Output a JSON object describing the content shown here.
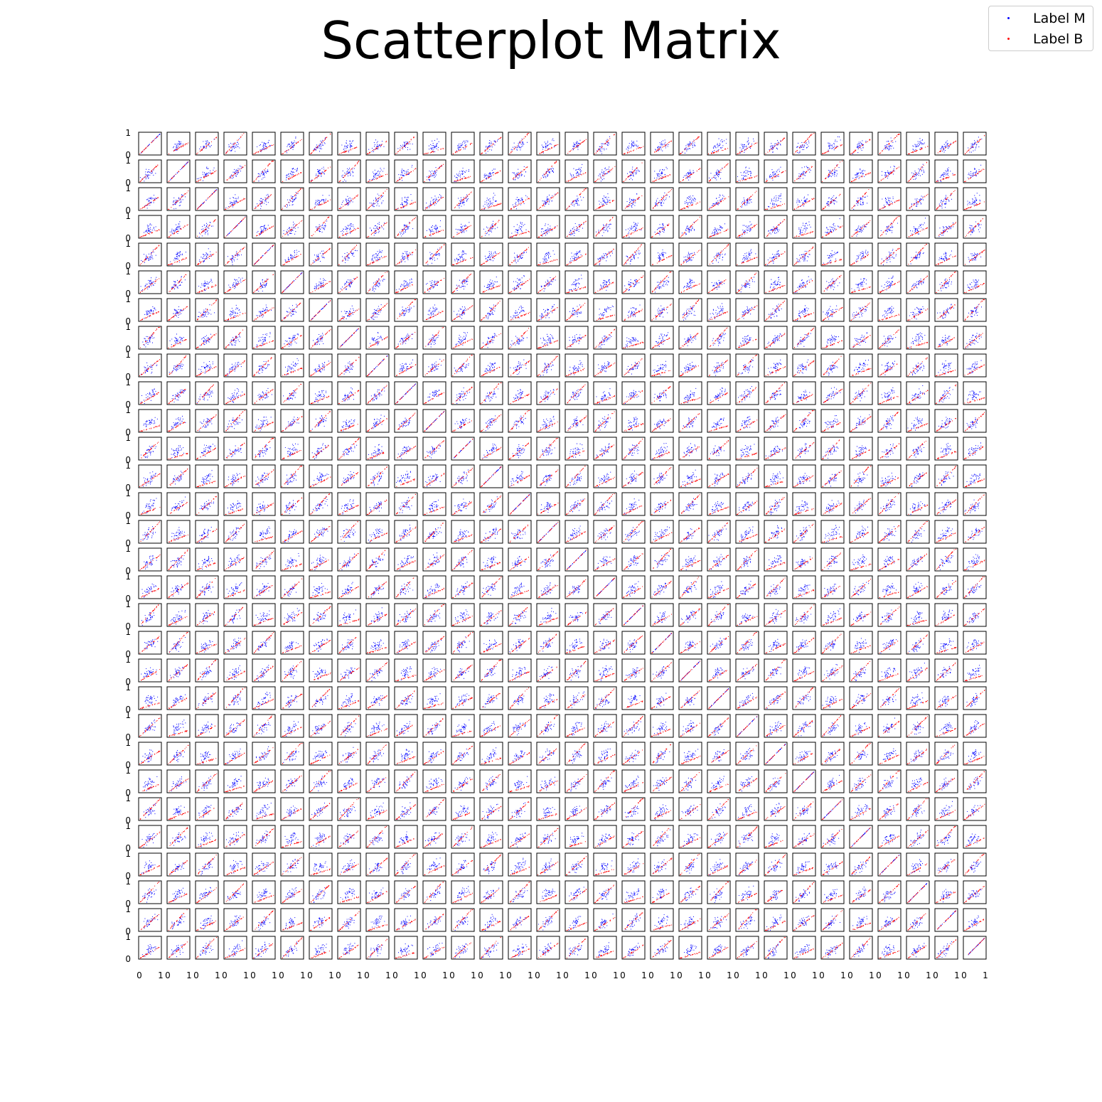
{
  "title": "Scatterplot Matrix",
  "legend": {
    "placement": "top-right",
    "entries": [
      {
        "label": "Label M",
        "color": "#0000ff"
      },
      {
        "label": "Label B",
        "color": "#ff0000"
      }
    ]
  },
  "chart_data": {
    "type": "scatter",
    "title": "Scatterplot Matrix",
    "layout": "scatterplot-matrix",
    "grid_rows": 30,
    "grid_cols": 30,
    "xlim": [
      0,
      1
    ],
    "ylim": [
      0,
      1
    ],
    "x_ticks": [
      "0",
      "1"
    ],
    "y_ticks": [
      "0",
      "1"
    ],
    "grid": false,
    "legend_placement": "top-right",
    "series": [
      {
        "name": "Label M",
        "color": "#0000ff"
      },
      {
        "name": "Label B",
        "color": "#ff0000"
      }
    ]
  }
}
